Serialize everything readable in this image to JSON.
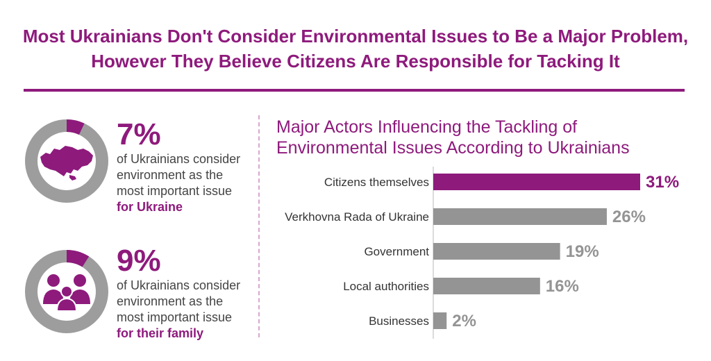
{
  "header": {
    "title_line1": "Most Ukrainians Don't Consider Environmental Issues to Be a Major Problem,",
    "title_line2": "However They Believe Citizens Are Responsible for Tacking It"
  },
  "colors": {
    "accent": "#8e1a7c",
    "gray": "#949494",
    "donut_gray": "#9d9d9d"
  },
  "stats": [
    {
      "percent": "7%",
      "value": 7,
      "line1": "of Ukrainians consider",
      "line2": "environment as the",
      "line3": "most important issue",
      "emphasis": "for Ukraine",
      "icon": "ukraine-map-icon"
    },
    {
      "percent": "9%",
      "value": 9,
      "line1": "of Ukrainians consider",
      "line2": "environment as the",
      "line3": "most important issue",
      "emphasis": "for their family",
      "icon": "family-icon"
    }
  ],
  "chart_data": {
    "type": "bar",
    "orientation": "horizontal",
    "title": "Major Actors Influencing the Tackling of Environmental Issues According to Ukrainians",
    "title_line1": "Major Actors Influencing the Tackling of",
    "title_line2": "Environmental Issues According to Ukrainians",
    "categories": [
      "Citizens themselves",
      "Verkhovna Rada of Ukraine",
      "Government",
      "Local authorities",
      "Businesses"
    ],
    "values": [
      31,
      26,
      19,
      16,
      2
    ],
    "value_labels": [
      "31%",
      "26%",
      "19%",
      "16%",
      "2%"
    ],
    "highlight_index": 0,
    "xlim": [
      0,
      31
    ]
  }
}
